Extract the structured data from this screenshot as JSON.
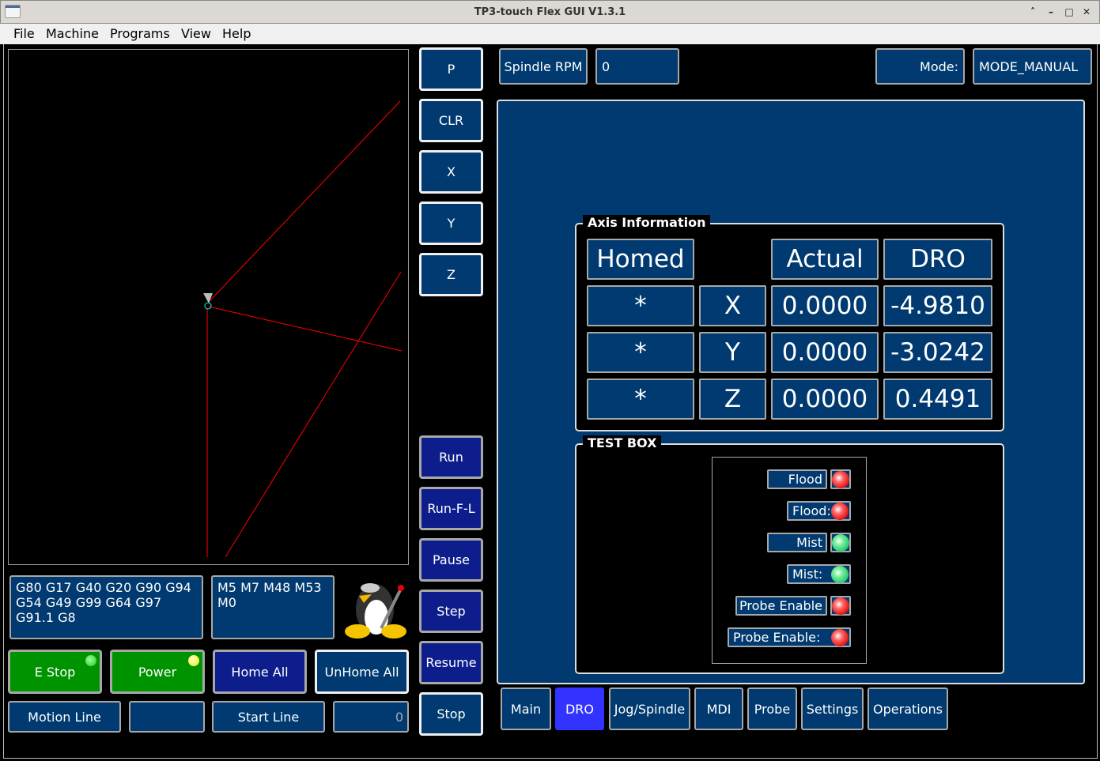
{
  "window": {
    "title": "TP3-touch Flex GUI V1.3.1",
    "controls": {
      "restore": "˄",
      "minimize": "–",
      "maximize": "□",
      "close": "✕"
    }
  },
  "menu": [
    "File",
    "Machine",
    "Programs",
    "View",
    "Help"
  ],
  "side_buttons": {
    "top": [
      "P",
      "CLR",
      "X",
      "Y",
      "Z"
    ],
    "bottom": [
      "Run",
      "Run-F-L",
      "Pause",
      "Step",
      "Resume",
      "Stop"
    ]
  },
  "gcodes": "G80 G17 G40 G20 G90 G94 G54 G49 G99 G64 G97 G91.1 G8",
  "mcodes": "M5 M7 M48 M53 M0",
  "buttons": {
    "estop": "E Stop",
    "power": "Power",
    "home_all": "Home All",
    "unhome_all": "UnHome All",
    "motion_line": "Motion Line",
    "motion_line_value": "",
    "start_line": "Start Line",
    "start_line_value": "0"
  },
  "leds": {
    "estop": "#22cc22",
    "power": "#ffff00"
  },
  "spindle": {
    "label": "Spindle RPM",
    "value": "0"
  },
  "mode": {
    "label": "Mode:",
    "value": "MODE_MANUAL"
  },
  "axis_info": {
    "title": "Axis Information",
    "headers": {
      "homed": "Homed",
      "actual": "Actual",
      "dro": "DRO"
    },
    "rows": [
      {
        "homed": "*",
        "axis": "X",
        "actual": "0.0000",
        "dro": "-4.9810"
      },
      {
        "homed": "*",
        "axis": "Y",
        "actual": "0.0000",
        "dro": "-3.0242"
      },
      {
        "homed": "*",
        "axis": "Z",
        "actual": "0.0000",
        "dro": "0.4491"
      }
    ]
  },
  "test_box": {
    "title": "TEST BOX",
    "items": [
      {
        "label": "Flood",
        "led": "red",
        "boxed": true
      },
      {
        "label": "Flood:",
        "led": "red",
        "boxed": false
      },
      {
        "label": "Mist",
        "led": "green",
        "boxed": true
      },
      {
        "label": "Mist:",
        "led": "green",
        "boxed": false
      },
      {
        "label": "Probe Enable",
        "led": "red",
        "boxed": true
      },
      {
        "label": "Probe Enable:",
        "led": "red",
        "boxed": false
      }
    ]
  },
  "tabs": [
    {
      "label": "Main"
    },
    {
      "label": "DRO",
      "selected": true
    },
    {
      "label": "Jog/Spindle"
    },
    {
      "label": "MDI"
    },
    {
      "label": "Probe"
    },
    {
      "label": "Settings"
    },
    {
      "label": "Operations"
    }
  ],
  "colors": {
    "panel": "#003a70",
    "selected_tab": "#3333ff",
    "toolpath": "#ff0000",
    "button_green": "#009300"
  }
}
